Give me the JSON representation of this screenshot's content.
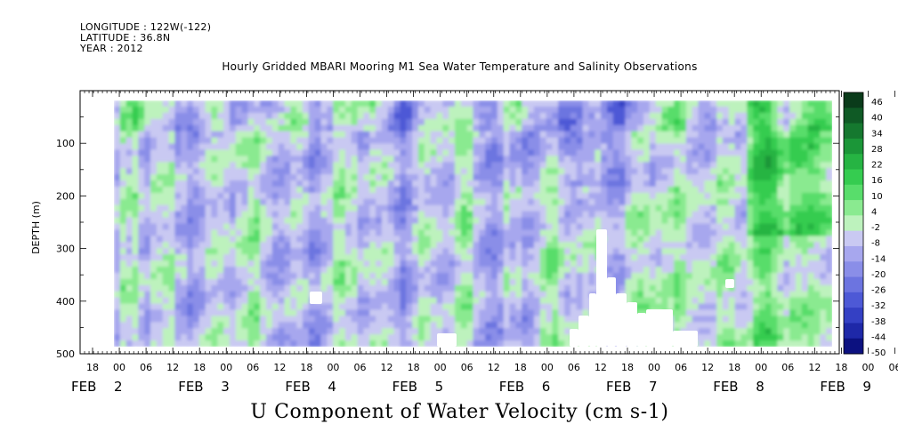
{
  "header": {
    "longitude": "LONGITUDE : 122W(-122)",
    "latitude": "LATITUDE : 36.8N",
    "year": "YEAR : 2012"
  },
  "chart_data": {
    "type": "heatmap",
    "title": "Hourly Gridded MBARI Mooring M1 Sea Water Temperature and Salinity Observations",
    "xlabel": "U Component of Water Velocity (cm s-1)",
    "ylabel": "DEPTH (m)",
    "ylim": [
      0,
      500
    ],
    "y_ticks": [
      100,
      200,
      300,
      400,
      500
    ],
    "x_hour_tick_labels": [
      "18",
      "00",
      "06",
      "12",
      "18",
      "00",
      "06",
      "12",
      "18",
      "00",
      "06",
      "12",
      "18",
      "00",
      "06",
      "12",
      "18",
      "00",
      "06",
      "12",
      "18",
      "00",
      "06",
      "12",
      "18",
      "00",
      "06",
      "12",
      "18",
      "00",
      "06",
      "12"
    ],
    "x_day_labels": [
      {
        "month": "FEB",
        "day": "2"
      },
      {
        "month": "FEB",
        "day": "3"
      },
      {
        "month": "FEB",
        "day": "4"
      },
      {
        "month": "FEB",
        "day": "5"
      },
      {
        "month": "FEB",
        "day": "6"
      },
      {
        "month": "FEB",
        "day": "7"
      },
      {
        "month": "FEB",
        "day": "8"
      },
      {
        "month": "FEB",
        "day": "9"
      }
    ],
    "colorbar_labels": [
      "46",
      "40",
      "34",
      "28",
      "22",
      "16",
      "10",
      "4",
      "-2",
      "-8",
      "-14",
      "-20",
      "-26",
      "-32",
      "-38",
      "-44",
      "-50"
    ],
    "colorbar_colors": [
      "#0a3b1a",
      "#0f5a25",
      "#15782f",
      "#1b9638",
      "#26b443",
      "#35cc50",
      "#58dd6b",
      "#8aea90",
      "#bdf2bd",
      "#c9c9f2",
      "#a7a7ee",
      "#8a8ee8",
      "#6c74e0",
      "#4d59d6",
      "#3440c4",
      "#1e28a8",
      "#0c1180"
    ],
    "note_bands_by_day": [
      {
        "day": "2",
        "tendency": "weak westward"
      },
      {
        "day": "3",
        "tendency": "weak westward"
      },
      {
        "day": "4",
        "tendency": "westward"
      },
      {
        "day": "5",
        "tendency": "mixed"
      },
      {
        "day": "6",
        "tendency": "mixed"
      },
      {
        "day": "7",
        "tendency": "eastward at depth"
      },
      {
        "day": "8",
        "tendency": "eastward"
      },
      {
        "day": "9",
        "tendency": "eastward"
      }
    ]
  }
}
